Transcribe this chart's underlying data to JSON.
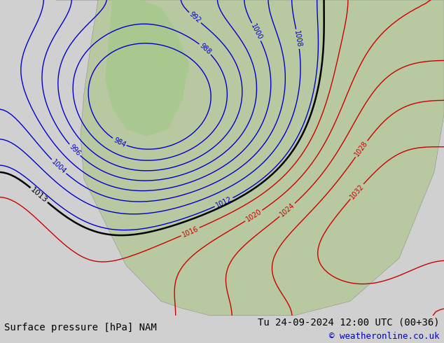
{
  "title_left": "Surface pressure [hPa] NAM",
  "title_right": "Tu 24-09-2024 12:00 UTC (00+36)",
  "copyright": "© weatheronline.co.uk",
  "bg_color": "#d0d0d0",
  "map_bg_color": "#c8c8c8",
  "land_color": "#b8c8a0",
  "ocean_color": "#c8c8c8",
  "bottom_bar_color": "#e8e8e8",
  "text_color_black": "#000000",
  "text_color_blue": "#0000cc",
  "contour_low_color": "#0000cc",
  "contour_high_color": "#cc0000",
  "contour_critical_color": "#000000",
  "figsize": [
    6.34,
    4.9
  ],
  "dpi": 100
}
